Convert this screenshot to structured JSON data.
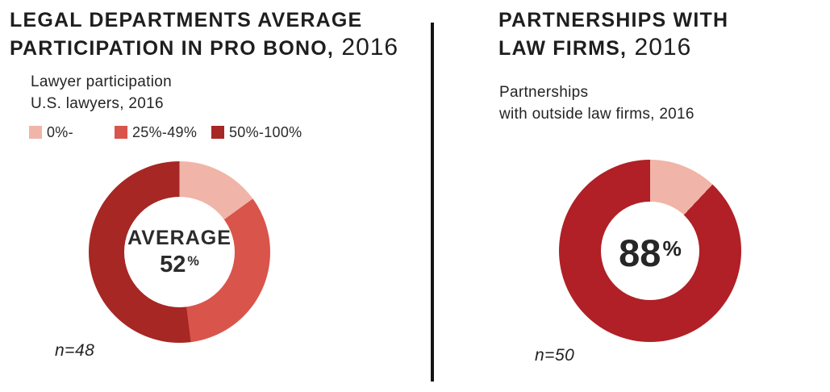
{
  "page": {
    "background": "#ffffff",
    "divider_color": "#141414"
  },
  "left_panel": {
    "title_line1": "LEGAL DEPARTMENTS AVERAGE",
    "title_line2": "PARTICIPATION IN PRO BONO,",
    "title_year": " 2016",
    "subtitle_line1": "Lawyer participation",
    "subtitle_line2": "U.S. lawyers, 2016"
  },
  "right_panel": {
    "title_line1": "PARTNERSHIPS WITH",
    "title_line2": "LAW FIRMS,",
    "title_year": " 2016",
    "subtitle_line1": "Partnerships",
    "subtitle_line2": "with outside law firms, 2016"
  },
  "chart_data": [
    {
      "type": "pie",
      "subtype": "donut",
      "title": "LEGAL DEPARTMENTS AVERAGE PARTICIPATION IN PRO BONO, 2016",
      "subtitle": "Lawyer participation U.S. lawyers, 2016",
      "legend_position": "top",
      "start_angle_deg": 0,
      "segments": [
        {
          "label": "0%-",
          "value": 15,
          "color": "#f0b5a8"
        },
        {
          "label": "25%-49%",
          "value": 33,
          "color": "#d9544a"
        },
        {
          "label": "50%-100%",
          "value": 52,
          "color": "#a62723"
        }
      ],
      "center_label": "AVERAGE",
      "center_value": "52",
      "center_unit": "%",
      "sample_size": "n=48"
    },
    {
      "type": "pie",
      "subtype": "donut",
      "title": "PARTNERSHIPS WITH LAW FIRMS, 2016",
      "subtitle": "Partnerships with outside law firms, 2016",
      "legend_position": "none",
      "start_angle_deg": 0,
      "segments": [
        {
          "label": "",
          "value": 12,
          "color": "#f0b5a8"
        },
        {
          "label": "",
          "value": 88,
          "color": "#b02026"
        }
      ],
      "center_value": "88",
      "center_unit": "%",
      "sample_size": "n=50"
    }
  ]
}
